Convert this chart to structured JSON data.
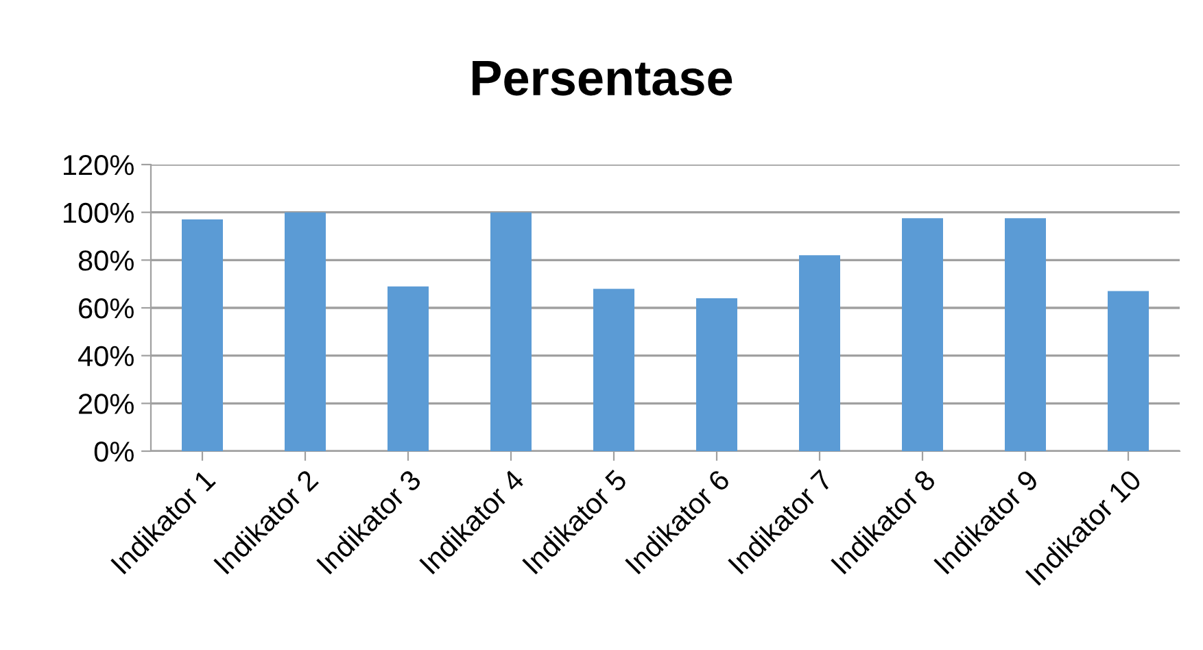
{
  "chart_data": {
    "type": "bar",
    "title": "Persentase",
    "categories": [
      "Indikator 1",
      "Indikator 2",
      "Indikator 3",
      "Indikator 4",
      "Indikator 5",
      "Indikator 6",
      "Indikator 7",
      "Indikator 8",
      "Indikator 9",
      "Indikator 10"
    ],
    "values": [
      97,
      100,
      69,
      100,
      68,
      64,
      82,
      97.5,
      97.5,
      67
    ],
    "color": "#5b9bd5",
    "ylim": [
      0,
      120
    ],
    "yticks": [
      {
        "value": 0,
        "label": "0%"
      },
      {
        "value": 20,
        "label": "20%"
      },
      {
        "value": 40,
        "label": "40%"
      },
      {
        "value": 60,
        "label": "60%"
      },
      {
        "value": 80,
        "label": "80%"
      },
      {
        "value": 100,
        "label": "100%"
      },
      {
        "value": 120,
        "label": "120%"
      }
    ],
    "grid": "y"
  }
}
